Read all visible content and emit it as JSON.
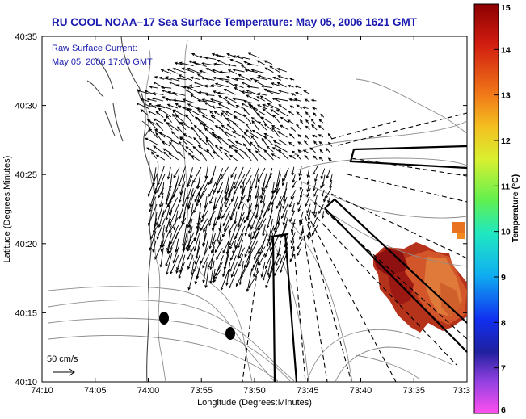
{
  "title": "RU COOL  NOAA–17  Sea Surface Temperature:  May 05, 2006 1621 GMT",
  "annotation": {
    "line1": "Raw Surface Current:",
    "line2": "May 05, 2006 17:00 GMT"
  },
  "scale_label": "50 cm/s",
  "axes": {
    "xlabel": "Longitude (Degrees:Minutes)",
    "ylabel": "Latitude (Degrees:Minutes)",
    "x_ticks": [
      "74:10",
      "74:05",
      "74:00",
      "73:55",
      "73:50",
      "73:45",
      "73:40",
      "73:35",
      "73:3"
    ],
    "y_ticks": [
      "40:35",
      "40:30",
      "40:25",
      "40:20",
      "40:15",
      "40:10"
    ]
  },
  "colorbar": {
    "label": "Temperature (°C)",
    "ticks": [
      "15",
      "14",
      "13",
      "12",
      "11",
      "10",
      "9",
      "8",
      "7",
      "6"
    ]
  },
  "colors": {
    "title": "#1b1bb0",
    "annotation": "#2020b0",
    "warm_sst": "#b01c14"
  }
}
